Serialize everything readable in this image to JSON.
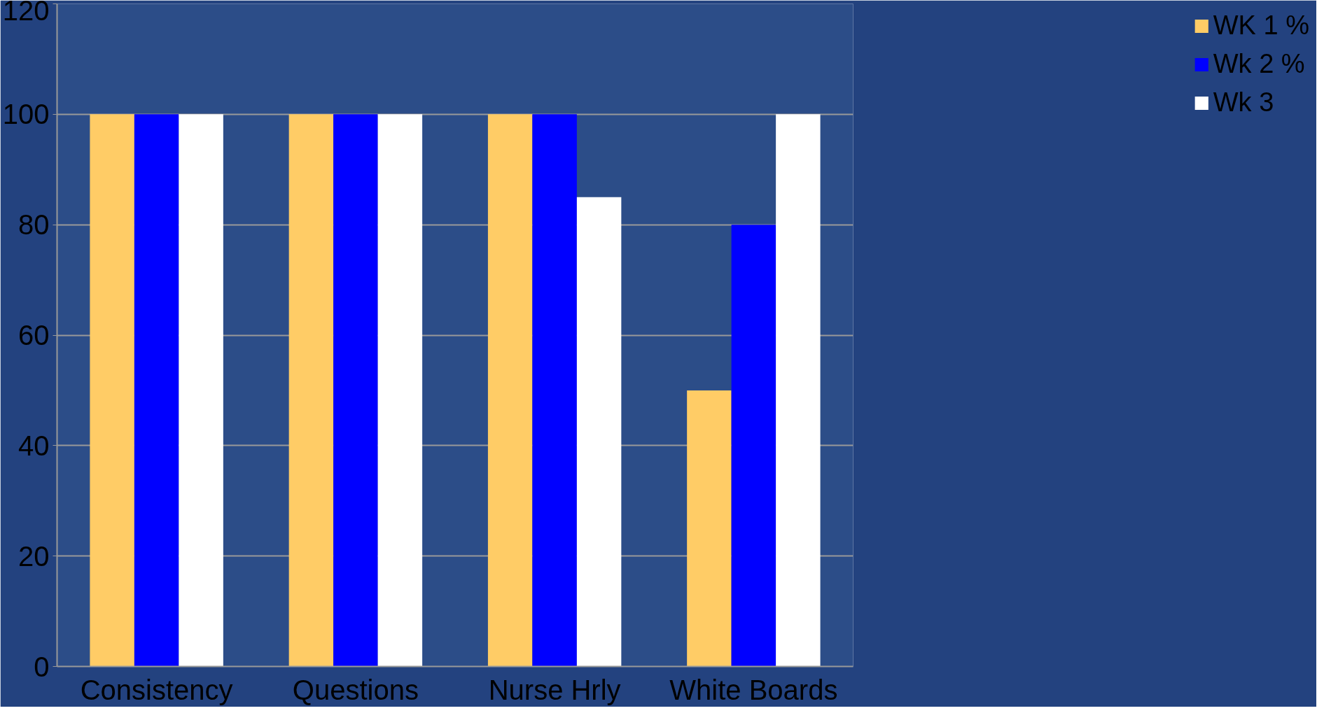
{
  "chart_data": {
    "type": "bar",
    "categories": [
      "Consistency",
      "Questions",
      "Nurse Hrly",
      "White Boards"
    ],
    "series": [
      {
        "name": "WK 1 %",
        "color": "#ffcc66",
        "values": [
          100,
          100,
          100,
          50
        ]
      },
      {
        "name": "Wk 2 %",
        "color": "#0000ff",
        "values": [
          100,
          100,
          100,
          80
        ]
      },
      {
        "name": "Wk 3",
        "color": "#ffffff",
        "values": [
          100,
          100,
          85,
          100
        ]
      }
    ],
    "ylim": [
      0,
      120
    ],
    "yticks": [
      0,
      20,
      40,
      60,
      80,
      100,
      120
    ],
    "grid": "y",
    "legend": "right"
  }
}
